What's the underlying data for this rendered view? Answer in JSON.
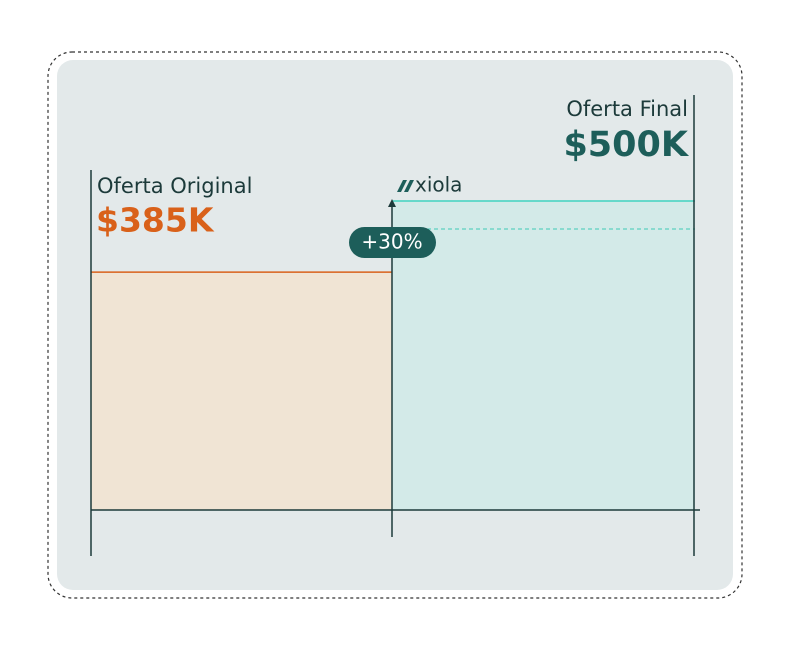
{
  "chart_data": {
    "type": "bar",
    "brand": "xiola",
    "categories": [
      "Oferta Original",
      "Oferta Final"
    ],
    "values": [
      385,
      500
    ],
    "value_labels": [
      "$385K",
      "$500K"
    ],
    "colors": [
      "#d9611a",
      "#1d5e5a"
    ],
    "annotation": "+30%"
  }
}
